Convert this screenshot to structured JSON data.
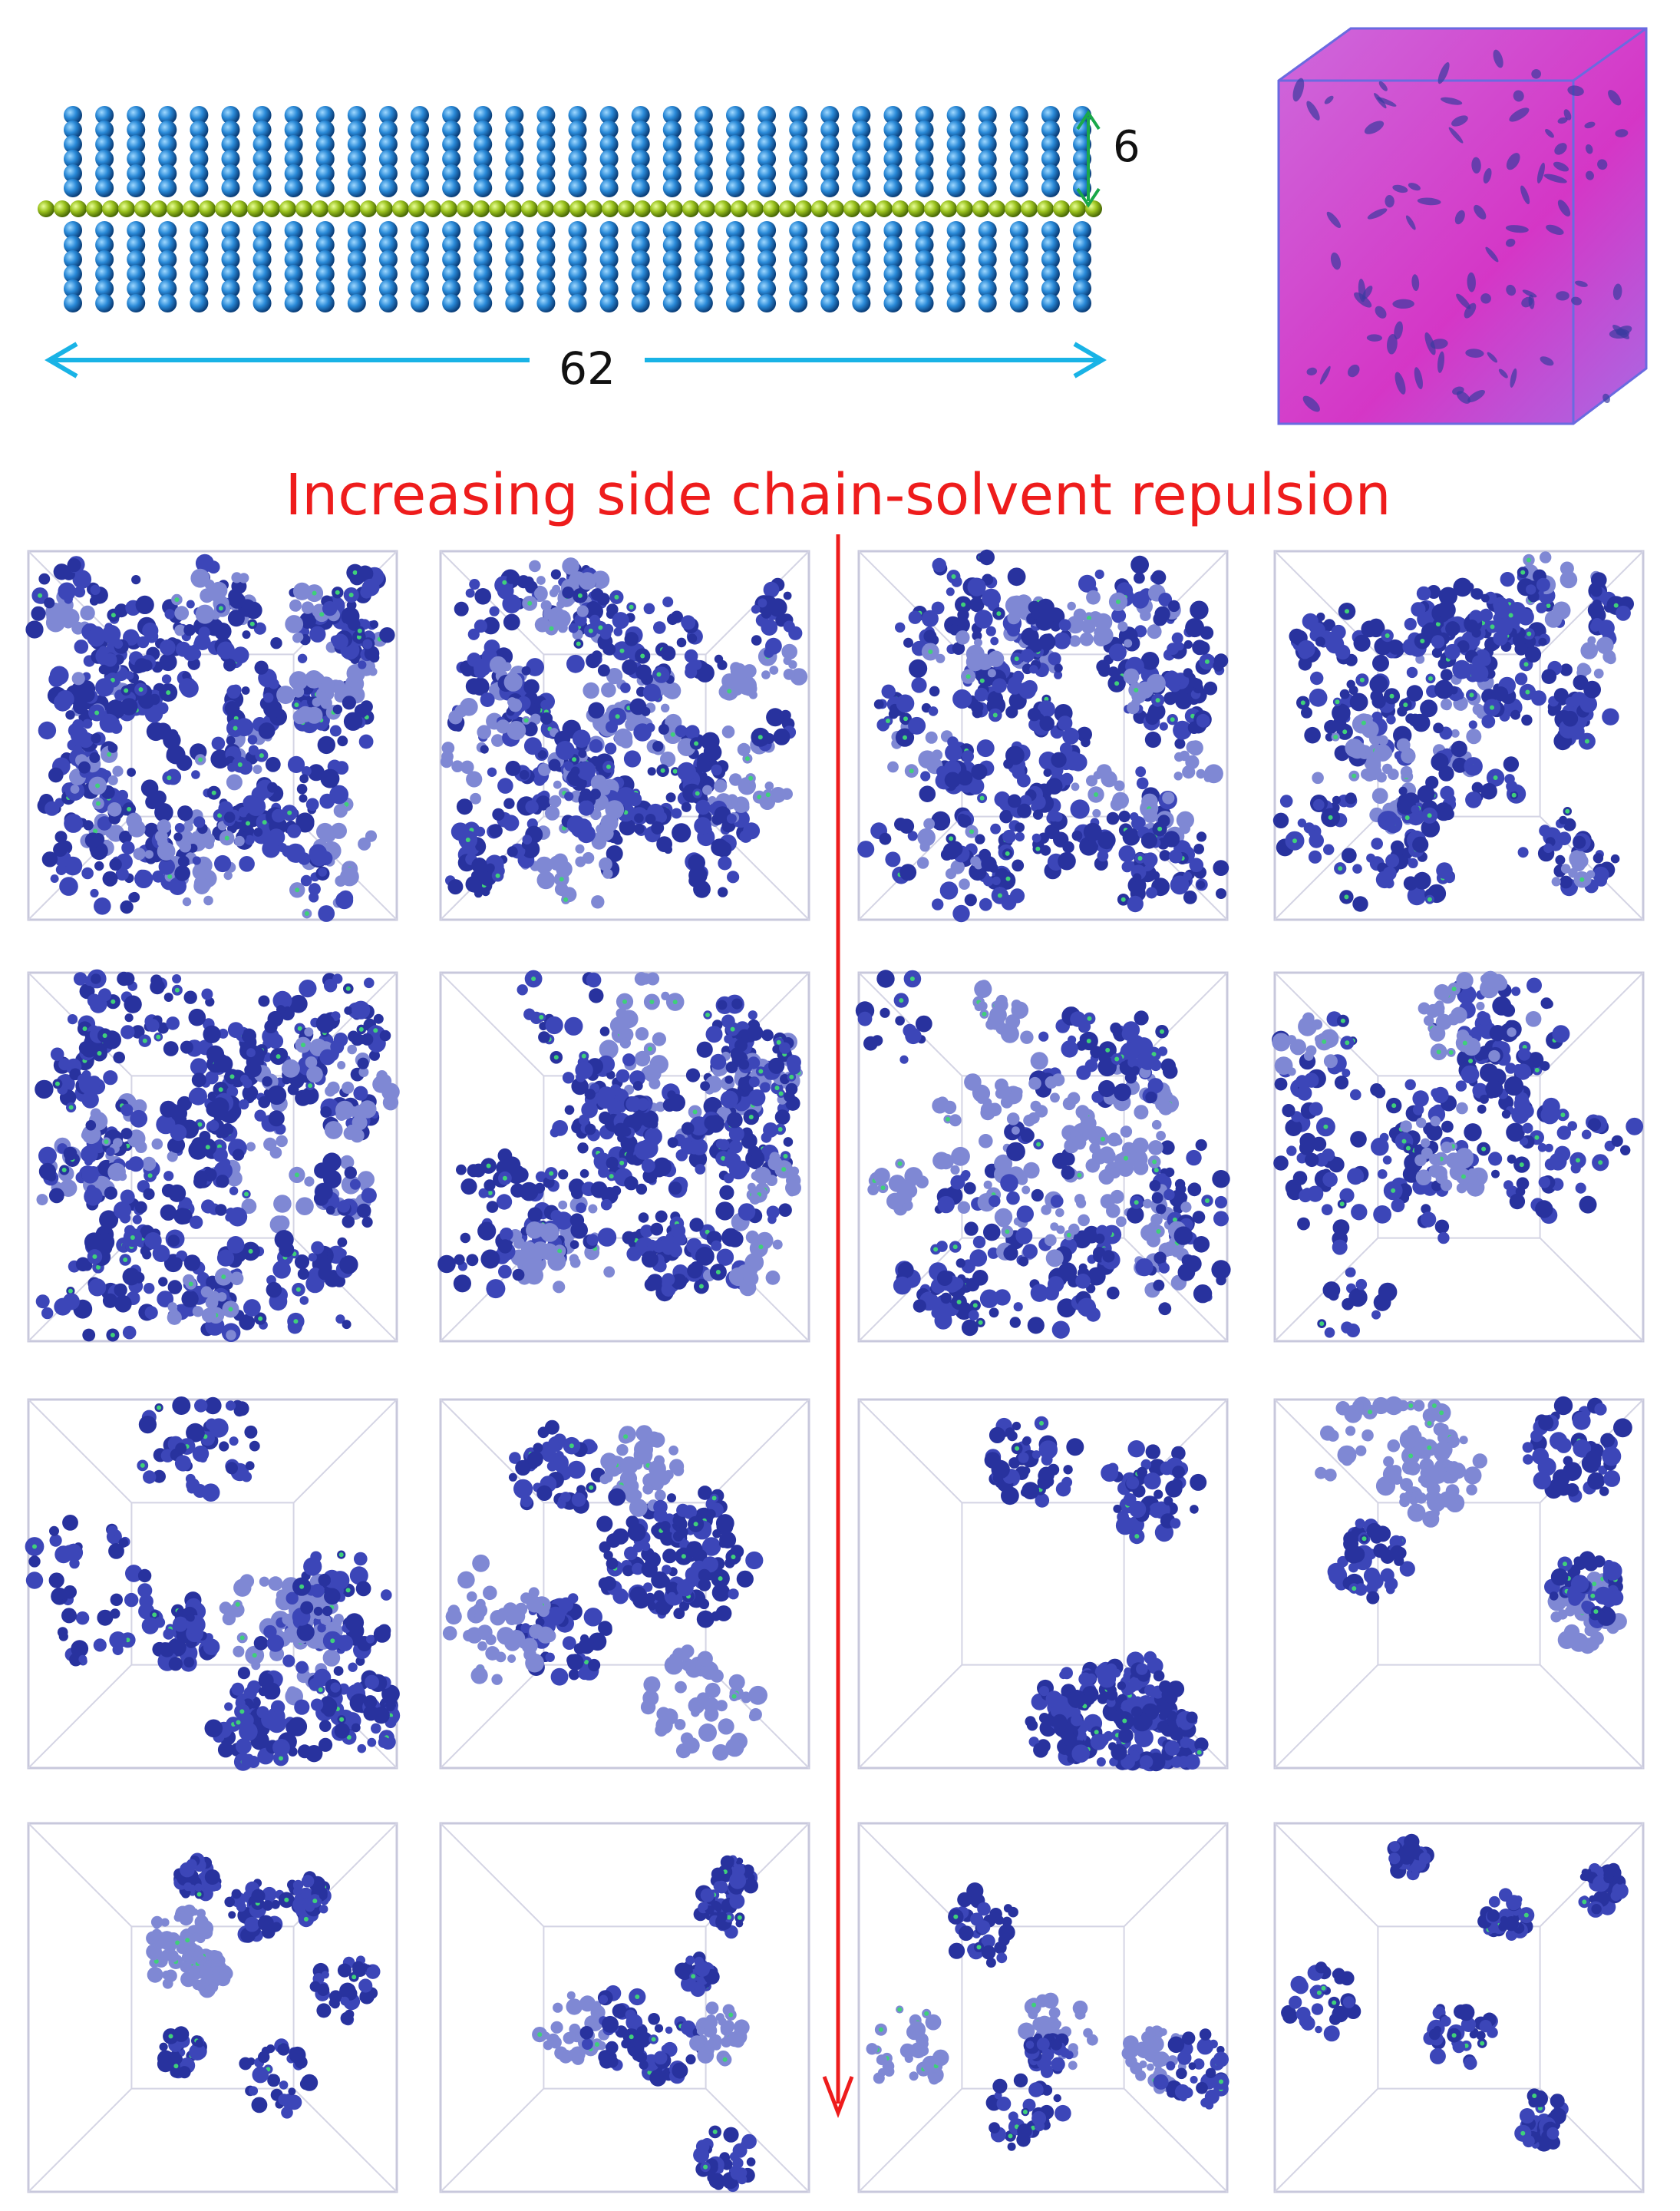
{
  "figure": {
    "height_label": 6,
    "length_label": 62,
    "caption": "Increasing side chain-solvent repulsion"
  }
}
